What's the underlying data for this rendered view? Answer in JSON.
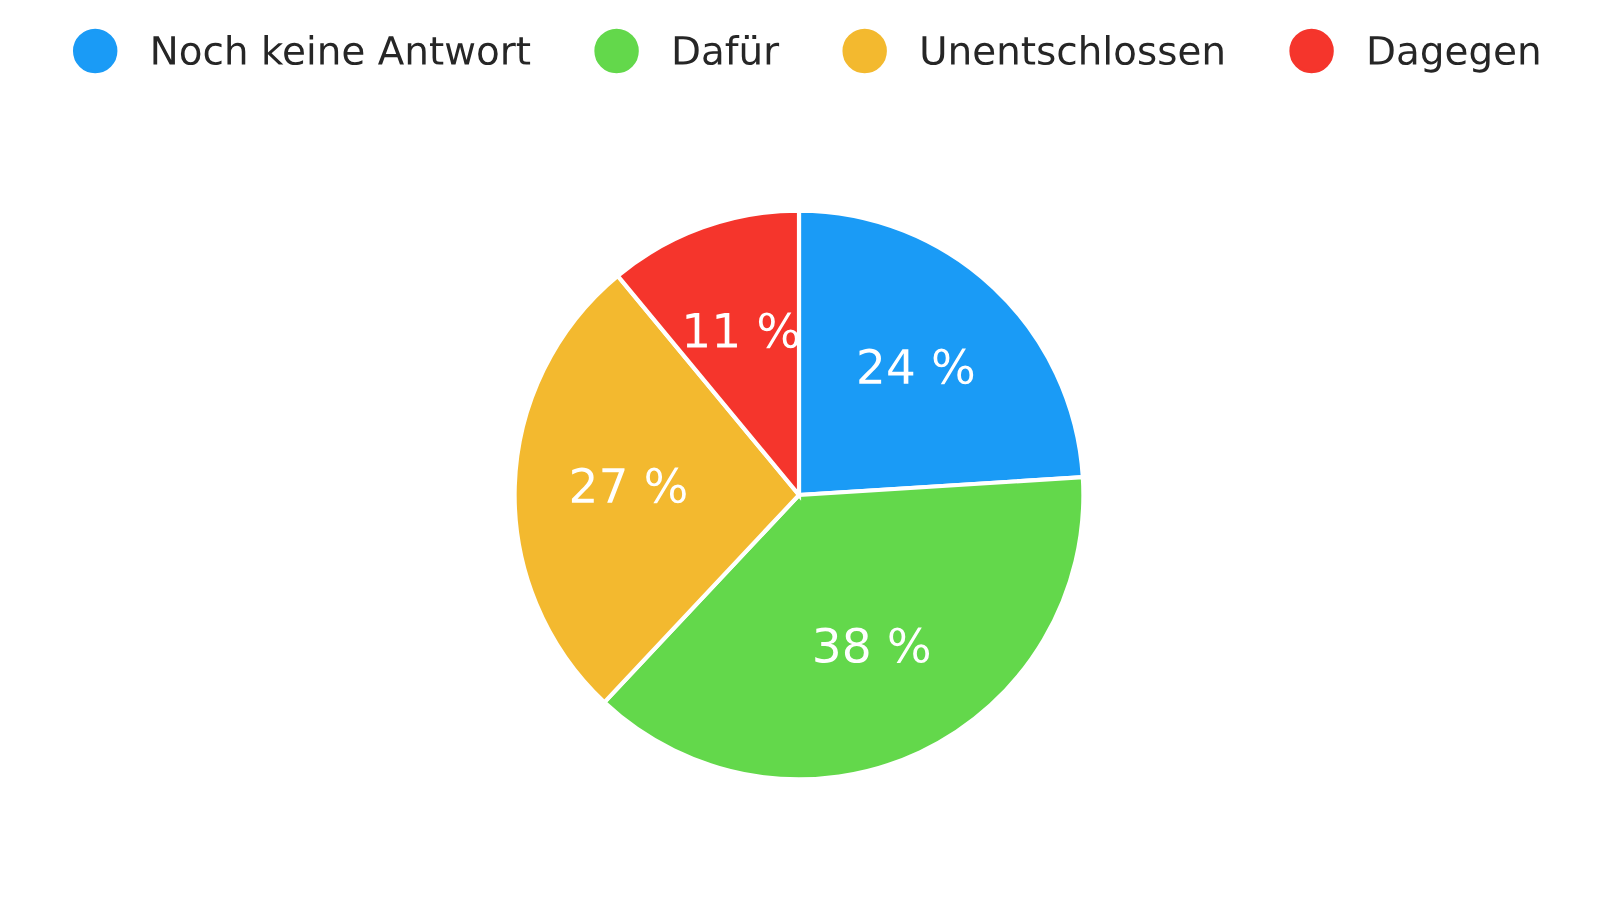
{
  "chart_data": {
    "type": "pie",
    "categories": [
      "Noch keine Antwort",
      "Dafür",
      "Unentschlossen",
      "Dagegen"
    ],
    "values": [
      24,
      38,
      27,
      11
    ],
    "colors": [
      "#1a9bf6",
      "#63d84b",
      "#f3b92f",
      "#f5352c"
    ],
    "value_labels": [
      "24 %",
      "38 %",
      "27 %",
      "11 %"
    ],
    "legend": "top"
  }
}
